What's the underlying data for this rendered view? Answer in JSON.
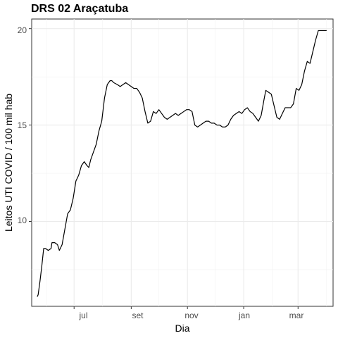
{
  "chart_data": {
    "type": "line",
    "title": "DRS 02 Araçatuba",
    "xlabel": "Dia",
    "ylabel": "Leitos UTI COVID / 100 mil hab",
    "x_ticks": [
      "jul",
      "set",
      "nov",
      "jan",
      "mar"
    ],
    "y_ticks": [
      "10",
      "15",
      "20"
    ],
    "ylim": [
      5.6,
      20.5
    ],
    "xlim": [
      "2020-05-16",
      "2021-04-08"
    ],
    "grid": true,
    "series": [
      {
        "color": "#000000",
        "x": [
          "2020-05-22",
          "2020-05-23",
          "2020-05-25",
          "2020-05-27",
          "2020-05-29",
          "2020-05-31",
          "2020-06-03",
          "2020-06-06",
          "2020-06-07",
          "2020-06-10",
          "2020-06-13",
          "2020-06-15",
          "2020-06-18",
          "2020-06-21",
          "2020-06-24",
          "2020-06-27",
          "2020-06-30",
          "2020-07-03",
          "2020-07-06",
          "2020-07-09",
          "2020-07-12",
          "2020-07-15",
          "2020-07-17",
          "2020-07-19",
          "2020-07-22",
          "2020-07-25",
          "2020-07-28",
          "2020-07-31",
          "2020-08-03",
          "2020-08-06",
          "2020-08-09",
          "2020-08-11",
          "2020-08-13",
          "2020-08-17",
          "2020-08-20",
          "2020-08-23",
          "2020-08-26",
          "2020-08-29",
          "2020-09-01",
          "2020-09-04",
          "2020-09-07",
          "2020-09-10",
          "2020-09-13",
          "2020-09-16",
          "2020-09-19",
          "2020-09-22",
          "2020-09-25",
          "2020-09-28",
          "2020-10-01",
          "2020-10-04",
          "2020-10-07",
          "2020-10-10",
          "2020-10-13",
          "2020-10-16",
          "2020-10-19",
          "2020-10-22",
          "2020-10-25",
          "2020-10-28",
          "2020-10-31",
          "2020-11-03",
          "2020-11-06",
          "2020-11-09",
          "2020-11-12",
          "2020-11-15",
          "2020-11-18",
          "2020-11-21",
          "2020-11-24",
          "2020-11-27",
          "2020-11-30",
          "2020-12-03",
          "2020-12-06",
          "2020-12-09",
          "2020-12-12",
          "2020-12-15",
          "2020-12-18",
          "2020-12-21",
          "2020-12-24",
          "2020-12-27",
          "2020-12-30",
          "2021-01-02",
          "2021-01-05",
          "2021-01-08",
          "2021-01-11",
          "2021-01-14",
          "2021-01-17",
          "2021-01-20",
          "2021-01-23",
          "2021-01-25",
          "2021-01-28",
          "2021-01-31",
          "2021-02-03",
          "2021-02-06",
          "2021-02-09",
          "2021-02-12",
          "2021-02-15",
          "2021-02-18",
          "2021-02-21",
          "2021-02-24",
          "2021-02-27",
          "2021-03-02",
          "2021-03-05",
          "2021-03-08",
          "2021-03-11",
          "2021-03-14",
          "2021-03-17",
          "2021-03-20",
          "2021-03-23",
          "2021-03-26",
          "2021-03-29",
          "2021-04-01"
        ],
        "y": [
          6.1,
          6.2,
          6.9,
          7.7,
          8.6,
          8.6,
          8.5,
          8.6,
          8.9,
          8.9,
          8.8,
          8.5,
          8.8,
          9.6,
          10.4,
          10.6,
          11.2,
          12.1,
          12.4,
          12.9,
          13.1,
          12.9,
          12.8,
          13.2,
          13.6,
          14.0,
          14.7,
          15.2,
          16.4,
          17.1,
          17.3,
          17.3,
          17.2,
          17.1,
          17.0,
          17.1,
          17.2,
          17.1,
          17.0,
          16.9,
          16.9,
          16.7,
          16.4,
          15.7,
          15.1,
          15.2,
          15.7,
          15.6,
          15.8,
          15.6,
          15.4,
          15.3,
          15.4,
          15.5,
          15.6,
          15.5,
          15.6,
          15.7,
          15.8,
          15.8,
          15.7,
          15.0,
          14.9,
          15.0,
          15.1,
          15.2,
          15.2,
          15.1,
          15.1,
          15.0,
          15.0,
          14.9,
          14.9,
          15.0,
          15.3,
          15.5,
          15.6,
          15.7,
          15.6,
          15.8,
          15.9,
          15.7,
          15.6,
          15.4,
          15.2,
          15.5,
          16.3,
          16.8,
          16.7,
          16.6,
          16.0,
          15.4,
          15.3,
          15.6,
          15.9,
          15.9,
          15.9,
          16.1,
          16.9,
          16.8,
          17.1,
          17.8,
          18.3,
          18.2,
          18.8,
          19.4,
          19.9,
          19.9,
          19.9,
          19.9
        ]
      }
    ]
  }
}
